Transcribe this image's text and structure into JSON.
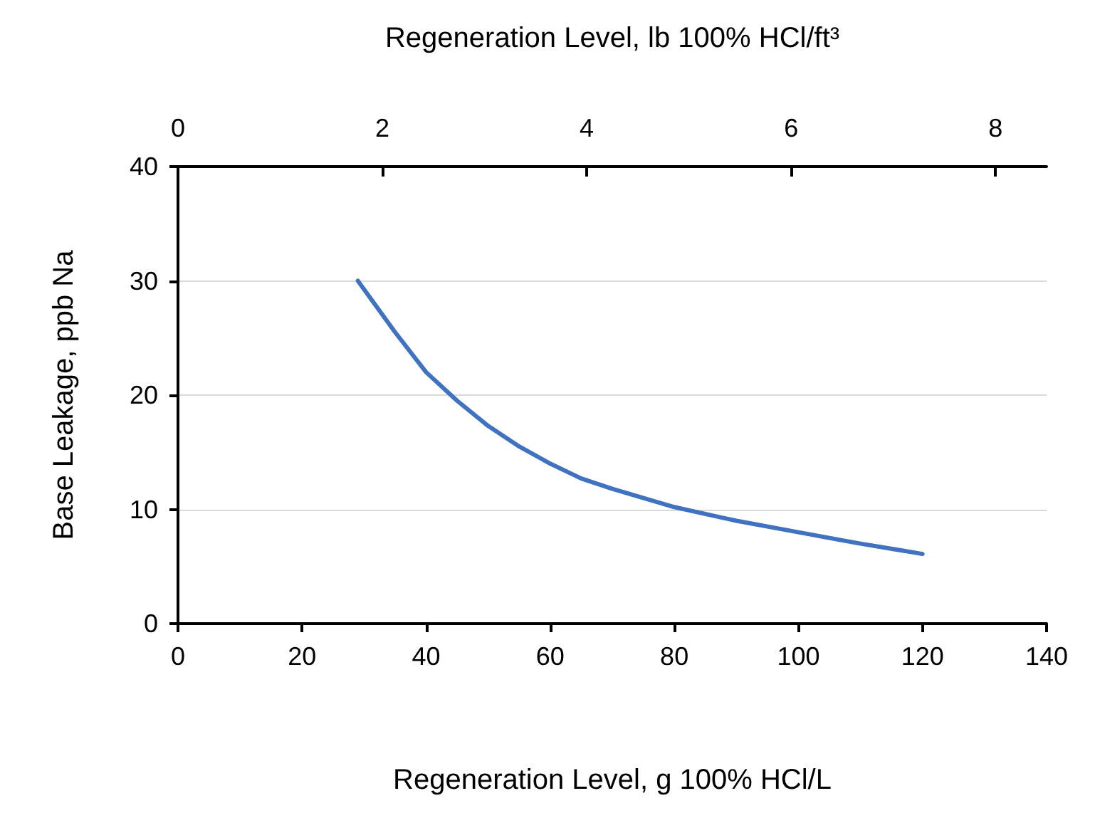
{
  "chart_data": {
    "type": "line",
    "xlabel": "Regeneration Level, g 100% HCl/L",
    "x2label": "Regeneration Level, lb 100% HCl/ft³",
    "ylabel": "Base Leakage, ppb Na",
    "series": [
      {
        "color": "#3f72c0",
        "x": [
          29,
          35,
          40,
          45,
          50,
          55,
          60,
          65,
          70,
          80,
          90,
          100,
          110,
          120
        ],
        "values": [
          30,
          25.5,
          22,
          19.5,
          17.3,
          15.5,
          14,
          12.7,
          11.8,
          10.2,
          9,
          8,
          7,
          6.1
        ]
      }
    ],
    "xlim": [
      0,
      140
    ],
    "xticks": [
      0,
      20,
      40,
      60,
      80,
      100,
      120,
      140
    ],
    "x2lim": [
      0,
      8.5
    ],
    "x2ticks": [
      0,
      2,
      4,
      6,
      8
    ],
    "ylim": [
      0,
      40
    ],
    "yticks": [
      0,
      10,
      20,
      30,
      40
    ],
    "grid": "y",
    "marker": "none",
    "line_style": "solid"
  }
}
